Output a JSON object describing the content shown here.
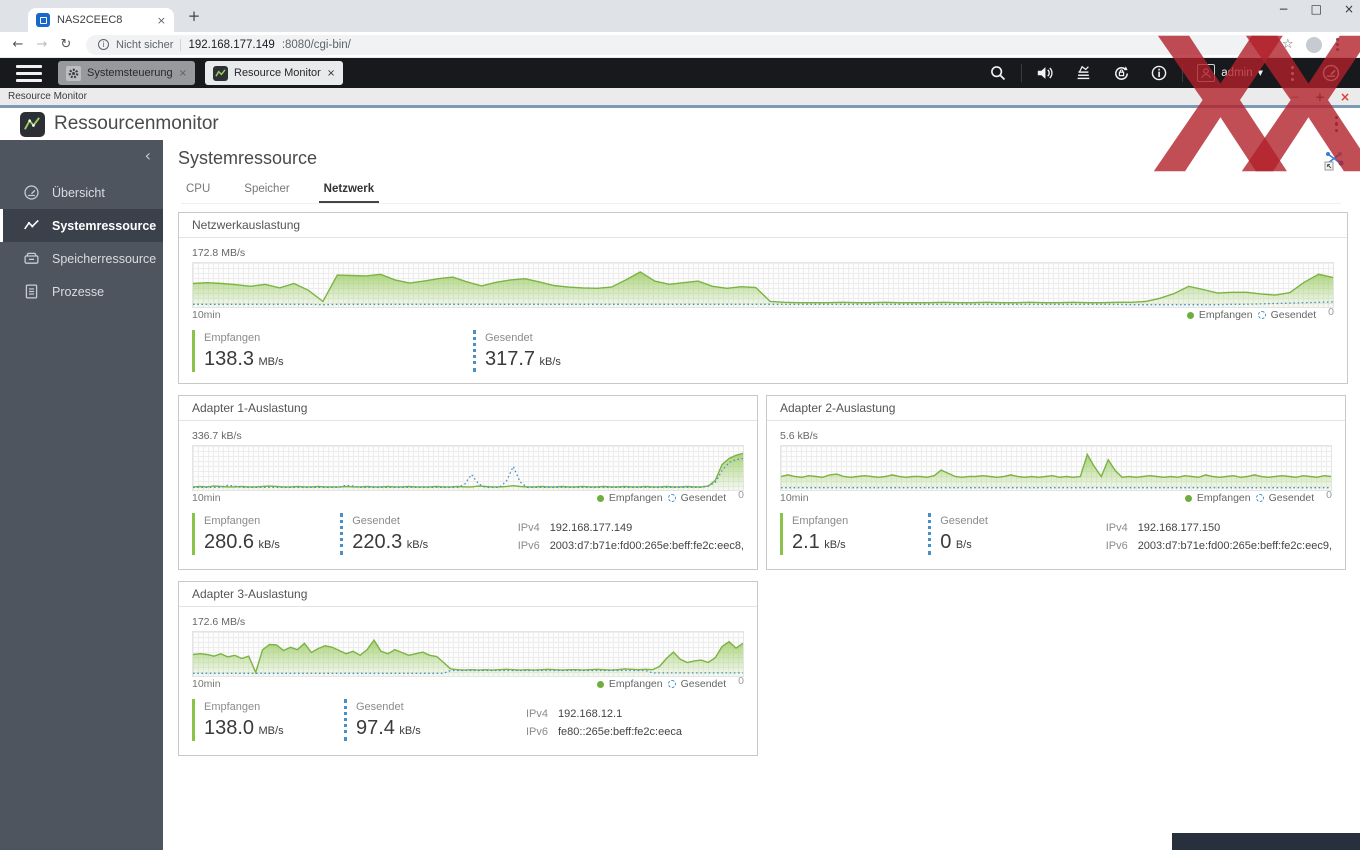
{
  "icons": {
    "close": "×",
    "new_tab": "+",
    "minimize": "−",
    "maximize": "□",
    "back": "←",
    "forward": "→",
    "reload": "↻",
    "star": "☆",
    "dropdown": "▼",
    "collapse": "‹",
    "win_min": "−",
    "win_add": "+",
    "win_close": "×",
    "info_letter": "i"
  },
  "browser": {
    "tab_title": "NAS2CEEC8",
    "security_label": "Nicht sicher",
    "url_host": "192.168.177.149",
    "url_path": ":8080/cgi-bin/"
  },
  "qnap": {
    "tabs": [
      {
        "label": "Systemsteuerung"
      },
      {
        "label": "Resource Monitor"
      }
    ],
    "username": "admin"
  },
  "window_bar": {
    "title": "Resource Monitor"
  },
  "app": {
    "title": "Ressourcenmonitor",
    "sidebar": {
      "items": [
        {
          "label": "Übersicht"
        },
        {
          "label": "Systemressource"
        },
        {
          "label": "Speicherressource"
        },
        {
          "label": "Prozesse"
        }
      ]
    },
    "page_title": "Systemressource",
    "tabs": [
      {
        "label": "CPU"
      },
      {
        "label": "Speicher"
      },
      {
        "label": "Netzwerk"
      }
    ]
  },
  "panels": [
    {
      "title": "Netzwerkauslastung",
      "ymax": "172.8 MB/s",
      "xspan": "10min",
      "yzero": "0",
      "legend_received": "Empfangen",
      "legend_sent": "Gesendet",
      "received_label": "Empfangen",
      "received_value": "138.3",
      "received_unit": "MB/s",
      "sent_label": "Gesendet",
      "sent_value": "317.7",
      "sent_unit": "kB/s"
    },
    {
      "title": "Adapter 1-Auslastung",
      "ymax": "336.7 kB/s",
      "xspan": "10min",
      "yzero": "0",
      "legend_received": "Empfangen",
      "legend_sent": "Gesendet",
      "received_label": "Empfangen",
      "received_value": "280.6",
      "received_unit": "kB/s",
      "sent_label": "Gesendet",
      "sent_value": "220.3",
      "sent_unit": "kB/s",
      "ipv4_label": "IPv4",
      "ipv4": "192.168.177.149",
      "ipv6_label": "IPv6",
      "ipv6": "2003:d7:b71e:fd00:265e:beff:fe2c:eec8,"
    },
    {
      "title": "Adapter 2-Auslastung",
      "ymax": "5.6 kB/s",
      "xspan": "10min",
      "yzero": "0",
      "legend_received": "Empfangen",
      "legend_sent": "Gesendet",
      "received_label": "Empfangen",
      "received_value": "2.1",
      "received_unit": "kB/s",
      "sent_label": "Gesendet",
      "sent_value": "0",
      "sent_unit": "B/s",
      "ipv4_label": "IPv4",
      "ipv4": "192.168.177.150",
      "ipv6_label": "IPv6",
      "ipv6": "2003:d7:b71e:fd00:265e:beff:fe2c:eec9,"
    },
    {
      "title": "Adapter 3-Auslastung",
      "ymax": "172.6 MB/s",
      "xspan": "10min",
      "yzero": "0",
      "legend_received": "Empfangen",
      "legend_sent": "Gesendet",
      "received_label": "Empfangen",
      "received_value": "138.0",
      "received_unit": "MB/s",
      "sent_label": "Gesendet",
      "sent_value": "97.4",
      "sent_unit": "kB/s",
      "ipv4_label": "IPv4",
      "ipv4": "192.168.12.1",
      "ipv6_label": "IPv6",
      "ipv6": "fe80::265e:beff:fe2c:eeca"
    }
  ],
  "colors": {
    "received": "#7cb342",
    "received_fill": "#9ccc65",
    "sent": "#4a90c4",
    "watermark_red": "#b2202a",
    "sidebar_bg": "#4e555f",
    "topbar_bg": "#18191d"
  },
  "chart_data": [
    {
      "type": "area",
      "title": "Netzwerkauslastung",
      "ylabel_max": "172.8 MB/s",
      "x_span": "10min",
      "values_unit": "percent_of_ymax",
      "ylim": [
        0,
        100
      ],
      "grid": true,
      "legend_position": "bottom-right",
      "series": [
        {
          "name": "Empfangen",
          "style": "received",
          "values": [
            55,
            57,
            55,
            52,
            48,
            53,
            44,
            55,
            38,
            10,
            76,
            75,
            74,
            78,
            64,
            56,
            61,
            67,
            71,
            59,
            49,
            58,
            64,
            67,
            59,
            50,
            46,
            44,
            43,
            46,
            64,
            84,
            61,
            53,
            57,
            61,
            48,
            43,
            47,
            45,
            10,
            8,
            7,
            7,
            7,
            8,
            7,
            7,
            8,
            7,
            7,
            7,
            8,
            7,
            7,
            8,
            7,
            7,
            8,
            7,
            7,
            8,
            7,
            7,
            8,
            8,
            10,
            18,
            30,
            48,
            40,
            31,
            33,
            33,
            29,
            26,
            32,
            58,
            78,
            70
          ]
        },
        {
          "name": "Gesendet",
          "style": "sent",
          "values": [
            3,
            3,
            3,
            3,
            3,
            3,
            3,
            3,
            3,
            2,
            3,
            3,
            3,
            3,
            3,
            3,
            3,
            3,
            3,
            3,
            3,
            3,
            3,
            3,
            3,
            3,
            3,
            3,
            3,
            3,
            3,
            3,
            3,
            3,
            3,
            3,
            3,
            3,
            3,
            3,
            3,
            3,
            3,
            3,
            3,
            3,
            3,
            3,
            3,
            3,
            3,
            3,
            3,
            3,
            3,
            3,
            3,
            3,
            3,
            3,
            3,
            3,
            3,
            3,
            3,
            2,
            2,
            2,
            2,
            2,
            2,
            2,
            3,
            3,
            4,
            5,
            6,
            7,
            8,
            9
          ]
        }
      ]
    },
    {
      "type": "area",
      "title": "Adapter 1-Auslastung",
      "ylabel_max": "336.7 kB/s",
      "x_span": "10min",
      "values_unit": "percent_of_ymax",
      "ylim": [
        0,
        100
      ],
      "grid": true,
      "legend_position": "bottom-right",
      "series": [
        {
          "name": "Empfangen",
          "style": "received",
          "values": [
            4,
            5,
            4,
            6,
            5,
            4,
            4,
            5,
            4,
            4,
            5,
            6,
            5,
            4,
            4,
            5,
            4,
            4,
            5,
            4,
            4,
            4,
            5,
            4,
            4,
            5,
            4,
            4,
            5,
            4,
            4,
            5,
            4,
            4,
            4,
            5,
            4,
            4,
            5,
            4,
            4,
            6,
            5,
            4,
            4,
            5,
            7,
            5,
            4,
            4,
            5,
            4,
            4,
            5,
            4,
            4,
            5,
            4,
            4,
            5,
            4,
            4,
            5,
            4,
            4,
            5,
            4,
            4,
            5,
            4,
            4,
            5,
            4,
            4,
            6,
            20,
            60,
            75,
            83,
            88
          ]
        },
        {
          "name": "Gesendet",
          "style": "sent",
          "values": [
            3,
            3,
            3,
            3,
            3,
            8,
            6,
            3,
            3,
            3,
            3,
            3,
            3,
            3,
            3,
            3,
            3,
            3,
            3,
            3,
            3,
            3,
            8,
            6,
            3,
            3,
            3,
            3,
            3,
            3,
            3,
            3,
            3,
            3,
            3,
            3,
            3,
            3,
            3,
            10,
            35,
            12,
            3,
            3,
            3,
            18,
            55,
            16,
            3,
            3,
            3,
            3,
            3,
            3,
            3,
            3,
            3,
            3,
            3,
            3,
            3,
            3,
            3,
            3,
            3,
            3,
            3,
            3,
            3,
            3,
            3,
            3,
            3,
            3,
            6,
            15,
            45,
            65,
            72,
            75
          ]
        }
      ]
    },
    {
      "type": "area",
      "title": "Adapter 2-Auslastung",
      "ylabel_max": "5.6 kB/s",
      "x_span": "10min",
      "values_unit": "percent_of_ymax",
      "ylim": [
        0,
        100
      ],
      "grid": true,
      "legend_position": "bottom-right",
      "series": [
        {
          "name": "Empfangen",
          "style": "received",
          "values": [
            30,
            34,
            30,
            28,
            32,
            30,
            28,
            34,
            36,
            30,
            28,
            30,
            32,
            30,
            28,
            30,
            34,
            30,
            28,
            30,
            30,
            28,
            32,
            46,
            38,
            30,
            28,
            30,
            30,
            32,
            30,
            28,
            30,
            34,
            30,
            28,
            30,
            28,
            30,
            32,
            28,
            30,
            28,
            30,
            85,
            55,
            30,
            72,
            45,
            28,
            30,
            28,
            30,
            32,
            30,
            28,
            30,
            28,
            32,
            30,
            28,
            34,
            30,
            28,
            30,
            32,
            28,
            30,
            34,
            30,
            28,
            30,
            32,
            30,
            28,
            32,
            30,
            28,
            32,
            30
          ]
        },
        {
          "name": "Gesendet",
          "style": "sent",
          "values": [
            2,
            2,
            2,
            2,
            2,
            2,
            2,
            2,
            2,
            2,
            2,
            2,
            2,
            2,
            2,
            2,
            2,
            2,
            2,
            2,
            2,
            2,
            2,
            2,
            2,
            2,
            2,
            2,
            2,
            2,
            2,
            2,
            2,
            2,
            2,
            2,
            2,
            2,
            2,
            2,
            2,
            2,
            2,
            2,
            2,
            2,
            2,
            2,
            2,
            2,
            2,
            2,
            2,
            2,
            2,
            2,
            2,
            2,
            2,
            2,
            2,
            2,
            2,
            2,
            2,
            2,
            2,
            2,
            2,
            2,
            2,
            2,
            2,
            2,
            2,
            2,
            2,
            2,
            2,
            2
          ]
        }
      ]
    },
    {
      "type": "area",
      "title": "Adapter 3-Auslastung",
      "ylabel_max": "172.6 MB/s",
      "x_span": "10min",
      "values_unit": "percent_of_ymax",
      "ylim": [
        0,
        100
      ],
      "grid": true,
      "legend_position": "bottom-right",
      "series": [
        {
          "name": "Empfangen",
          "style": "received",
          "values": [
            50,
            52,
            50,
            46,
            52,
            44,
            48,
            40,
            46,
            5,
            62,
            75,
            74,
            60,
            68,
            62,
            78,
            55,
            65,
            72,
            68,
            60,
            52,
            58,
            48,
            62,
            86,
            58,
            52,
            62,
            55,
            48,
            52,
            56,
            48,
            45,
            30,
            14,
            12,
            11,
            12,
            11,
            12,
            11,
            12,
            13,
            12,
            11,
            12,
            11,
            12,
            13,
            12,
            11,
            12,
            12,
            11,
            12,
            13,
            12,
            11,
            12,
            14,
            13,
            12,
            13,
            12,
            20,
            40,
            56,
            38,
            30,
            34,
            36,
            30,
            42,
            70,
            82,
            66,
            78
          ]
        },
        {
          "name": "Gesendet",
          "style": "sent",
          "values": [
            3,
            3,
            3,
            3,
            3,
            3,
            3,
            3,
            3,
            3,
            3,
            3,
            3,
            3,
            3,
            3,
            3,
            3,
            3,
            3,
            3,
            3,
            3,
            3,
            3,
            3,
            3,
            3,
            3,
            3,
            3,
            3,
            3,
            3,
            3,
            3,
            3,
            10,
            10,
            10,
            10,
            10,
            10,
            10,
            10,
            10,
            10,
            10,
            10,
            10,
            10,
            10,
            10,
            10,
            10,
            10,
            10,
            10,
            10,
            10,
            10,
            10,
            10,
            10,
            10,
            10,
            4,
            4,
            4,
            4,
            4,
            4,
            4,
            4,
            4,
            4,
            4,
            4,
            4,
            4
          ]
        }
      ]
    }
  ]
}
